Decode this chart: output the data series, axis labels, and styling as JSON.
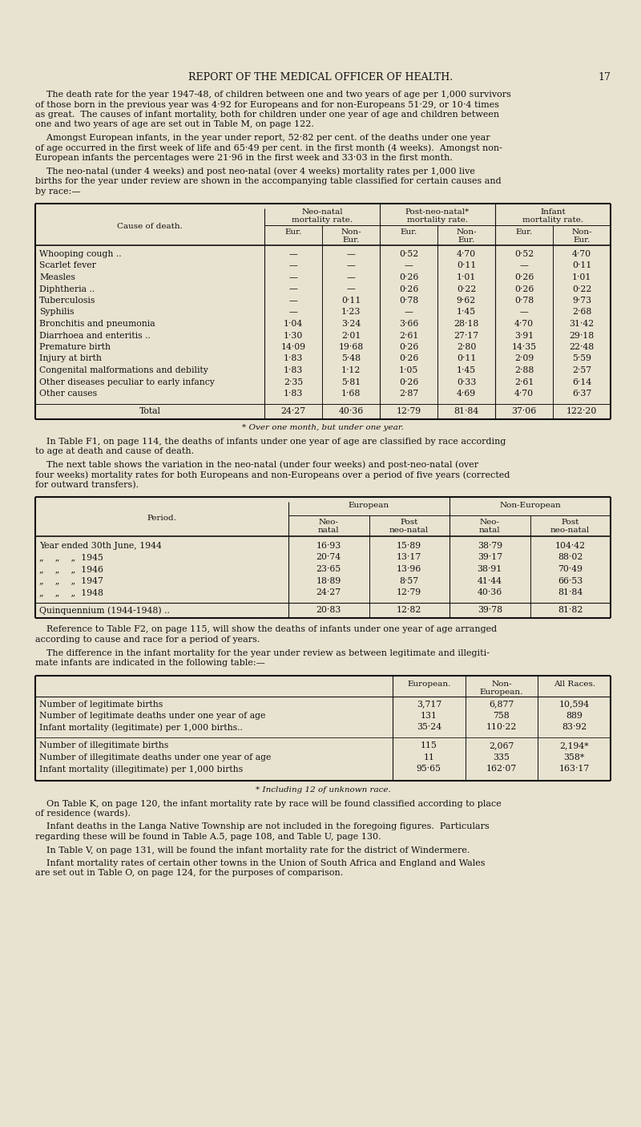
{
  "bg_color": "#e8e3d0",
  "page_header": "REPORT OF THE MEDICAL OFFICER OF HEALTH.",
  "page_number": "17",
  "p1_lines": [
    "    The death rate for the year 1947-48, of children between one and two years of age per 1,000 survivors",
    "of those born in the previous year was 4·92 for Europeans and for non-Europeans 51·29, or 10·4 times",
    "as great.  The causes of infant mortality, both for children under one year of age and children between",
    "one and two years of age are set out in Table M, on page 122."
  ],
  "p2_lines": [
    "    Amongst European infants, in the year under report, 52·82 per cent. of the deaths under one year",
    "of age occurred in the first week of life and 65·49 per cent. in the first month (4 weeks).  Amongst non-",
    "European infants the percentages were 21·96 in the first week and 33·03 in the first month."
  ],
  "p3_lines": [
    "    The neo-natal (under 4 weeks) and post neo-natal (over 4 weeks) mortality rates per 1,000 live",
    "births for the year under review are shown in the accompanying table classified for certain causes and",
    "by race:—"
  ],
  "t1_rows": [
    [
      "Whooping cough ..",
      "—",
      "—",
      "0·52",
      "4·70",
      "0·52",
      "4·70"
    ],
    [
      "Scarlet fever",
      "—",
      "—",
      "—",
      "0·11",
      "—",
      "0·11"
    ],
    [
      "Measles",
      "—",
      "—",
      "0·26",
      "1·01",
      "0·26",
      "1·01"
    ],
    [
      "Diphtheria ..",
      "—",
      "—",
      "0·26",
      "0·22",
      "0·26",
      "0·22"
    ],
    [
      "Tuberculosis",
      "—",
      "0·11",
      "0·78",
      "9·62",
      "0·78",
      "9·73"
    ],
    [
      "Syphilis",
      "—",
      "1·23",
      "—",
      "1·45",
      "—",
      "2·68"
    ],
    [
      "Bronchitis and pneumonia",
      "1·04",
      "3·24",
      "3·66",
      "28·18",
      "4·70",
      "31·42"
    ],
    [
      "Diarrhoea and enteritis ..",
      "1·30",
      "2·01",
      "2·61",
      "27·17",
      "3·91",
      "29·18"
    ],
    [
      "Premature birth",
      "14·09",
      "19·68",
      "0·26",
      "2·80",
      "14·35",
      "22·48"
    ],
    [
      "Injury at birth",
      "1·83",
      "5·48",
      "0·26",
      "0·11",
      "2·09",
      "5·59"
    ],
    [
      "Congenital malformations and debility",
      "1·83",
      "1·12",
      "1·05",
      "1·45",
      "2·88",
      "2·57"
    ],
    [
      "Other diseases peculiar to early infancy",
      "2·35",
      "5·81",
      "0·26",
      "0·33",
      "2·61",
      "6·14"
    ],
    [
      "Other causes",
      "1·83",
      "1·68",
      "2·87",
      "4·69",
      "4·70",
      "6·37"
    ]
  ],
  "t1_total": [
    "Total",
    "24·27",
    "40·36",
    "12·79",
    "81·84",
    "37·06",
    "122·20"
  ],
  "t1_footnote": "* Over one month, but under one year.",
  "p4_lines": [
    "    In Table F1, on page 114, the deaths of infants under one year of age are classified by race according",
    "to age at death and cause of death."
  ],
  "p5_lines": [
    "    The next table shows the variation in the neo-natal (under four weeks) and post-neo-natal (over",
    "four weeks) mortality rates for both Europeans and non-Europeans over a period of five years (corrected",
    "for outward transfers)."
  ],
  "t2_rows": [
    [
      "Year ended 30th June, 1944",
      "16·93",
      "15·89",
      "38·79",
      "104·42"
    ],
    [
      "„    „    „  1945",
      "20·74",
      "13·17",
      "39·17",
      "88·02"
    ],
    [
      "„    „    „  1946",
      "23·65",
      "13·96",
      "38·91",
      "70·49"
    ],
    [
      "„    „    „  1947",
      "18·89",
      "8·57",
      "41·44",
      "66·53"
    ],
    [
      "„    „    „  1948",
      "24·27",
      "12·79",
      "40·36",
      "81·84"
    ]
  ],
  "t2_quinq": [
    "Quinquennium (1944-1948) ..",
    "20·83",
    "12·82",
    "39·78",
    "81·82"
  ],
  "p6_lines": [
    "    Reference to Table F2, on page 115, will show the deaths of infants under one year of age arranged",
    "according to cause and race for a period of years."
  ],
  "p7_lines": [
    "    The difference in the infant mortality for the year under review as between legitimate and illegiti-",
    "mate infants are indicated in the following table:—"
  ],
  "t3_rows1": [
    [
      "Number of legitimate births",
      "3,717",
      "6,877",
      "10,594"
    ],
    [
      "Number of legitimate deaths under one year of age",
      "131",
      "758",
      "889"
    ],
    [
      "Infant mortality (legitimate) per 1,000 births..",
      "35·24",
      "110·22",
      "83·92"
    ]
  ],
  "t3_rows2": [
    [
      "Number of illegitimate births",
      "115",
      "2,067",
      "2,194*"
    ],
    [
      "Number of illegitimate deaths under one year of age",
      "11",
      "335",
      "358*"
    ],
    [
      "Infant mortality (illegitimate) per 1,000 births",
      "95·65",
      "162·07",
      "163·17"
    ]
  ],
  "t3_footnote": "* Including 12 of unknown race.",
  "p8_lines": [
    "    On Table K, on page 120, the infant mortality rate by race will be found classified according to place",
    "of residence (wards)."
  ],
  "p9_lines": [
    "    Infant deaths in the Langa Native Township are not included in the foregoing figures.  Particulars",
    "regarding these will be found in Table A.5, page 108, and Table U, page 130."
  ],
  "p10_lines": [
    "    In Table V, on page 131, will be found the infant mortality rate for the district of Windermere."
  ],
  "p11_lines": [
    "    Infant mortality rates of certain other towns in the Union of South Africa and England and Wales",
    "are set out in Table O, on page 124, for the purposes of comparison."
  ]
}
